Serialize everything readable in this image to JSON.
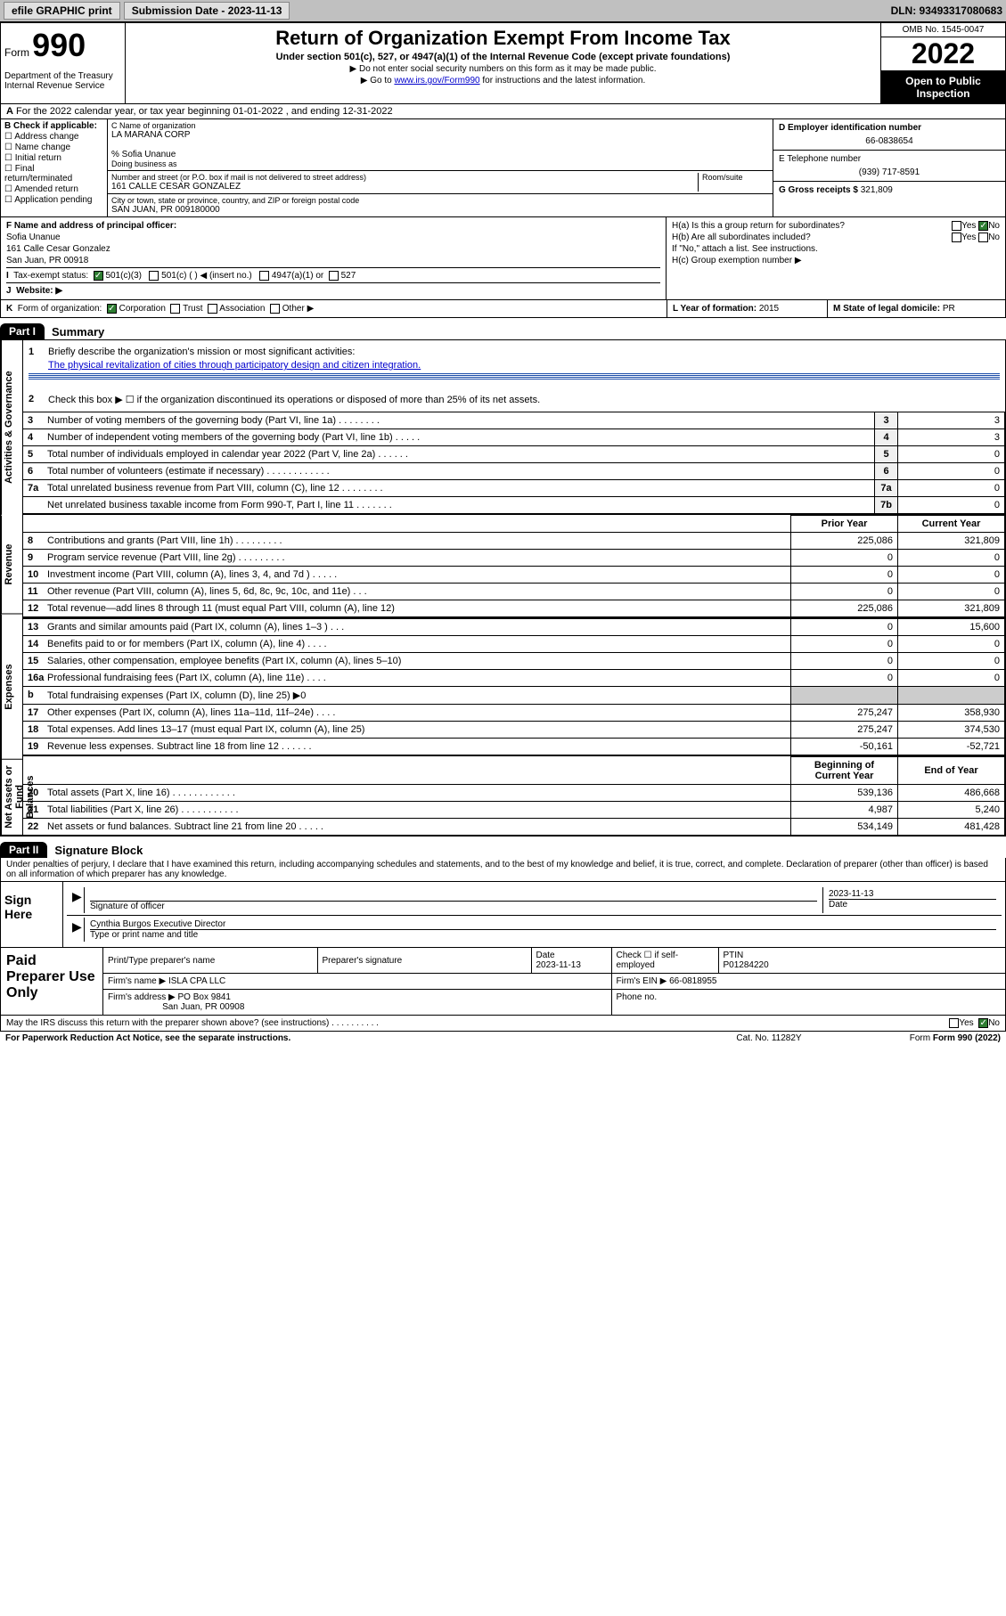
{
  "topbar": {
    "efile": "efile GRAPHIC print",
    "subdate_label": "Submission Date - ",
    "subdate": "2023-11-13",
    "dln": "DLN: 93493317080683"
  },
  "header": {
    "form_word": "Form",
    "form_num": "990",
    "dept": "Department of the Treasury\nInternal Revenue Service",
    "title": "Return of Organization Exempt From Income Tax",
    "sub": "Under section 501(c), 527, or 4947(a)(1) of the Internal Revenue Code (except private foundations)",
    "note1": "▶ Do not enter social security numbers on this form as it may be made public.",
    "note2a": "▶ Go to ",
    "note2link": "www.irs.gov/Form990",
    "note2b": " for instructions and the latest information.",
    "omb": "OMB No. 1545-0047",
    "year": "2022",
    "open": "Open to Public Inspection"
  },
  "rowA": {
    "text": "For the 2022 calendar year, or tax year beginning 01-01-2022   , and ending 12-31-2022",
    "prefix": "A"
  },
  "colB": {
    "label": "B Check if applicable:",
    "items": [
      "Address change",
      "Name change",
      "Initial return",
      "Final return/terminated",
      "Amended return",
      "Application pending"
    ]
  },
  "colC": {
    "cNameLbl": "C Name of organization",
    "cName": "LA MARANA CORP",
    "careOf": "% Sofia Unanue",
    "dbaLbl": "Doing business as",
    "streetLbl": "Number and street (or P.O. box if mail is not delivered to street address)",
    "roomLbl": "Room/suite",
    "street": "161 CALLE CESAR GONZALEZ",
    "cityLbl": "City or town, state or province, country, and ZIP or foreign postal code",
    "city": "SAN JUAN, PR  009180000"
  },
  "colD": {
    "einLbl": "D Employer identification number",
    "ein": "66-0838654",
    "phoneLbl": "E Telephone number",
    "phone": "(939) 717-8591",
    "grossLbl": "G Gross receipts $",
    "gross": "321,809"
  },
  "rowF": {
    "fLbl": "F Name and address of principal officer:",
    "fName": "Sofia Unanue",
    "fAddr1": "161 Calle Cesar Gonzalez",
    "fAddr2": "San Juan, PR  00918"
  },
  "rowH": {
    "ha": "H(a)  Is this a group return for subordinates?",
    "hb": "H(b)  Are all subordinates included?",
    "hbNote": "If \"No,\" attach a list. See instructions.",
    "hc": "H(c)  Group exemption number ▶",
    "yes": "Yes",
    "no": "No"
  },
  "rowI": {
    "lbl": "Tax-exempt status:",
    "i": "I",
    "opts": [
      "501(c)(3)",
      "501(c) (  ) ◀ (insert no.)",
      "4947(a)(1) or",
      "527"
    ]
  },
  "rowJ": {
    "lbl": "Website: ▶",
    "j": "J"
  },
  "rowK": {
    "k": "K",
    "lbl": "Form of organization:",
    "opts": [
      "Corporation",
      "Trust",
      "Association",
      "Other ▶"
    ],
    "lLbl": "L Year of formation:",
    "lVal": "2015",
    "mLbl": "M State of legal domicile:",
    "mVal": "PR"
  },
  "part1": {
    "tag": "Part I",
    "title": "Summary"
  },
  "sections": [
    {
      "label": "Activities & Governance"
    },
    {
      "label": "Revenue"
    },
    {
      "label": "Expenses"
    },
    {
      "label": "Net Assets or Fund Balances"
    }
  ],
  "gov": {
    "q1lbl": "1",
    "q1": "Briefly describe the organization's mission or most significant activities:",
    "q1ans": "The physical revitalization of cities through participatory design and citizen integration.",
    "q2lbl": "2",
    "q2": "Check this box ▶ ☐  if the organization discontinued its operations or disposed of more than 25% of its net assets.",
    "rows": [
      {
        "n": "3",
        "t": "Number of voting members of the governing body (Part VI, line 1a)   .    .    .    .    .    .    .    .",
        "ln": "3",
        "v": "3"
      },
      {
        "n": "4",
        "t": "Number of independent voting members of the governing body (Part VI, line 1b)   .    .    .    .    .",
        "ln": "4",
        "v": "3"
      },
      {
        "n": "5",
        "t": "Total number of individuals employed in calendar year 2022 (Part V, line 2a)   .    .    .    .    .    .",
        "ln": "5",
        "v": "0"
      },
      {
        "n": "6",
        "t": "Total number of volunteers (estimate if necessary)   .    .    .    .    .    .    .    .    .    .    .    .",
        "ln": "6",
        "v": "0"
      },
      {
        "n": "7a",
        "t": "Total unrelated business revenue from Part VIII, column (C), line 12   .    .    .    .    .    .    .    .",
        "ln": "7a",
        "v": "0"
      },
      {
        "n": "",
        "t": "Net unrelated business taxable income from Form 990-T, Part I, line 11   .    .    .    .    .    .    .",
        "ln": "7b",
        "v": "0"
      }
    ]
  },
  "revHdr": {
    "prior": "Prior Year",
    "curr": "Current Year"
  },
  "rev": [
    {
      "n": "8",
      "t": "Contributions and grants (Part VIII, line 1h)   .    .    .    .    .    .    .    .    .",
      "p": "225,086",
      "c": "321,809"
    },
    {
      "n": "9",
      "t": "Program service revenue (Part VIII, line 2g)   .    .    .    .    .    .    .    .    .",
      "p": "0",
      "c": "0"
    },
    {
      "n": "10",
      "t": "Investment income (Part VIII, column (A), lines 3, 4, and 7d )   .    .    .    .    .",
      "p": "0",
      "c": "0"
    },
    {
      "n": "11",
      "t": "Other revenue (Part VIII, column (A), lines 5, 6d, 8c, 9c, 10c, and 11e)   .    .    .",
      "p": "0",
      "c": "0"
    },
    {
      "n": "12",
      "t": "Total revenue—add lines 8 through 11 (must equal Part VIII, column (A), line 12)",
      "p": "225,086",
      "c": "321,809"
    }
  ],
  "exp": [
    {
      "n": "13",
      "t": "Grants and similar amounts paid (Part IX, column (A), lines 1–3 )   .    .    .",
      "p": "0",
      "c": "15,600"
    },
    {
      "n": "14",
      "t": "Benefits paid to or for members (Part IX, column (A), line 4)   .    .    .    .",
      "p": "0",
      "c": "0"
    },
    {
      "n": "15",
      "t": "Salaries, other compensation, employee benefits (Part IX, column (A), lines 5–10)",
      "p": "0",
      "c": "0"
    },
    {
      "n": "16a",
      "t": "Professional fundraising fees (Part IX, column (A), line 11e)   .    .    .    .",
      "p": "0",
      "c": "0"
    },
    {
      "n": "b",
      "t": "Total fundraising expenses (Part IX, column (D), line 25) ▶0",
      "p": "",
      "c": "",
      "shade": true
    },
    {
      "n": "17",
      "t": "Other expenses (Part IX, column (A), lines 11a–11d, 11f–24e)   .    .    .    .",
      "p": "275,247",
      "c": "358,930"
    },
    {
      "n": "18",
      "t": "Total expenses. Add lines 13–17 (must equal Part IX, column (A), line 25)",
      "p": "275,247",
      "c": "374,530"
    },
    {
      "n": "19",
      "t": "Revenue less expenses. Subtract line 18 from line 12   .    .    .    .    .    .",
      "p": "-50,161",
      "c": "-52,721"
    }
  ],
  "netHdr": {
    "beg": "Beginning of Current Year",
    "end": "End of Year"
  },
  "net": [
    {
      "n": "20",
      "t": "Total assets (Part X, line 16)   .    .    .    .    .    .    .    .    .    .    .    .",
      "p": "539,136",
      "c": "486,668"
    },
    {
      "n": "21",
      "t": "Total liabilities (Part X, line 26)   .    .    .    .    .    .    .    .    .    .    .",
      "p": "4,987",
      "c": "5,240"
    },
    {
      "n": "22",
      "t": "Net assets or fund balances. Subtract line 21 from line 20   .    .    .    .    .",
      "p": "534,149",
      "c": "481,428"
    }
  ],
  "part2": {
    "tag": "Part II",
    "title": "Signature Block"
  },
  "penalty": "Under penalties of perjury, I declare that I have examined this return, including accompanying schedules and statements, and to the best of my knowledge and belief, it is true, correct, and complete. Declaration of preparer (other than officer) is based on all information of which preparer has any knowledge.",
  "sign": {
    "here": "Sign Here",
    "sigLbl": "Signature of officer",
    "dateLbl": "Date",
    "date": "2023-11-13",
    "name": "Cynthia Burgos  Executive Director",
    "nameLbl": "Type or print name and title"
  },
  "paid": {
    "title": "Paid Preparer Use Only",
    "h1": "Print/Type preparer's name",
    "h2": "Preparer's signature",
    "h3": "Date",
    "h3v": "2023-11-13",
    "h4": "Check ☐ if self-employed",
    "h5": "PTIN",
    "h5v": "P01284220",
    "firmNameLbl": "Firm's name    ▶",
    "firmName": "ISLA CPA LLC",
    "firmEinLbl": "Firm's EIN ▶",
    "firmEin": "66-0818955",
    "firmAddrLbl": "Firm's address ▶",
    "firmAddr1": "PO Box 9841",
    "firmAddr2": "San Juan, PR  00908",
    "phoneLbl": "Phone no."
  },
  "may": {
    "text": "May the IRS discuss this return with the preparer shown above? (see instructions)   .    .    .    .    .    .    .    .    .    .",
    "yes": "Yes",
    "no": "No"
  },
  "footer": {
    "l": "For Paperwork Reduction Act Notice, see the separate instructions.",
    "m": "Cat. No. 11282Y",
    "r": "Form 990 (2022)"
  }
}
